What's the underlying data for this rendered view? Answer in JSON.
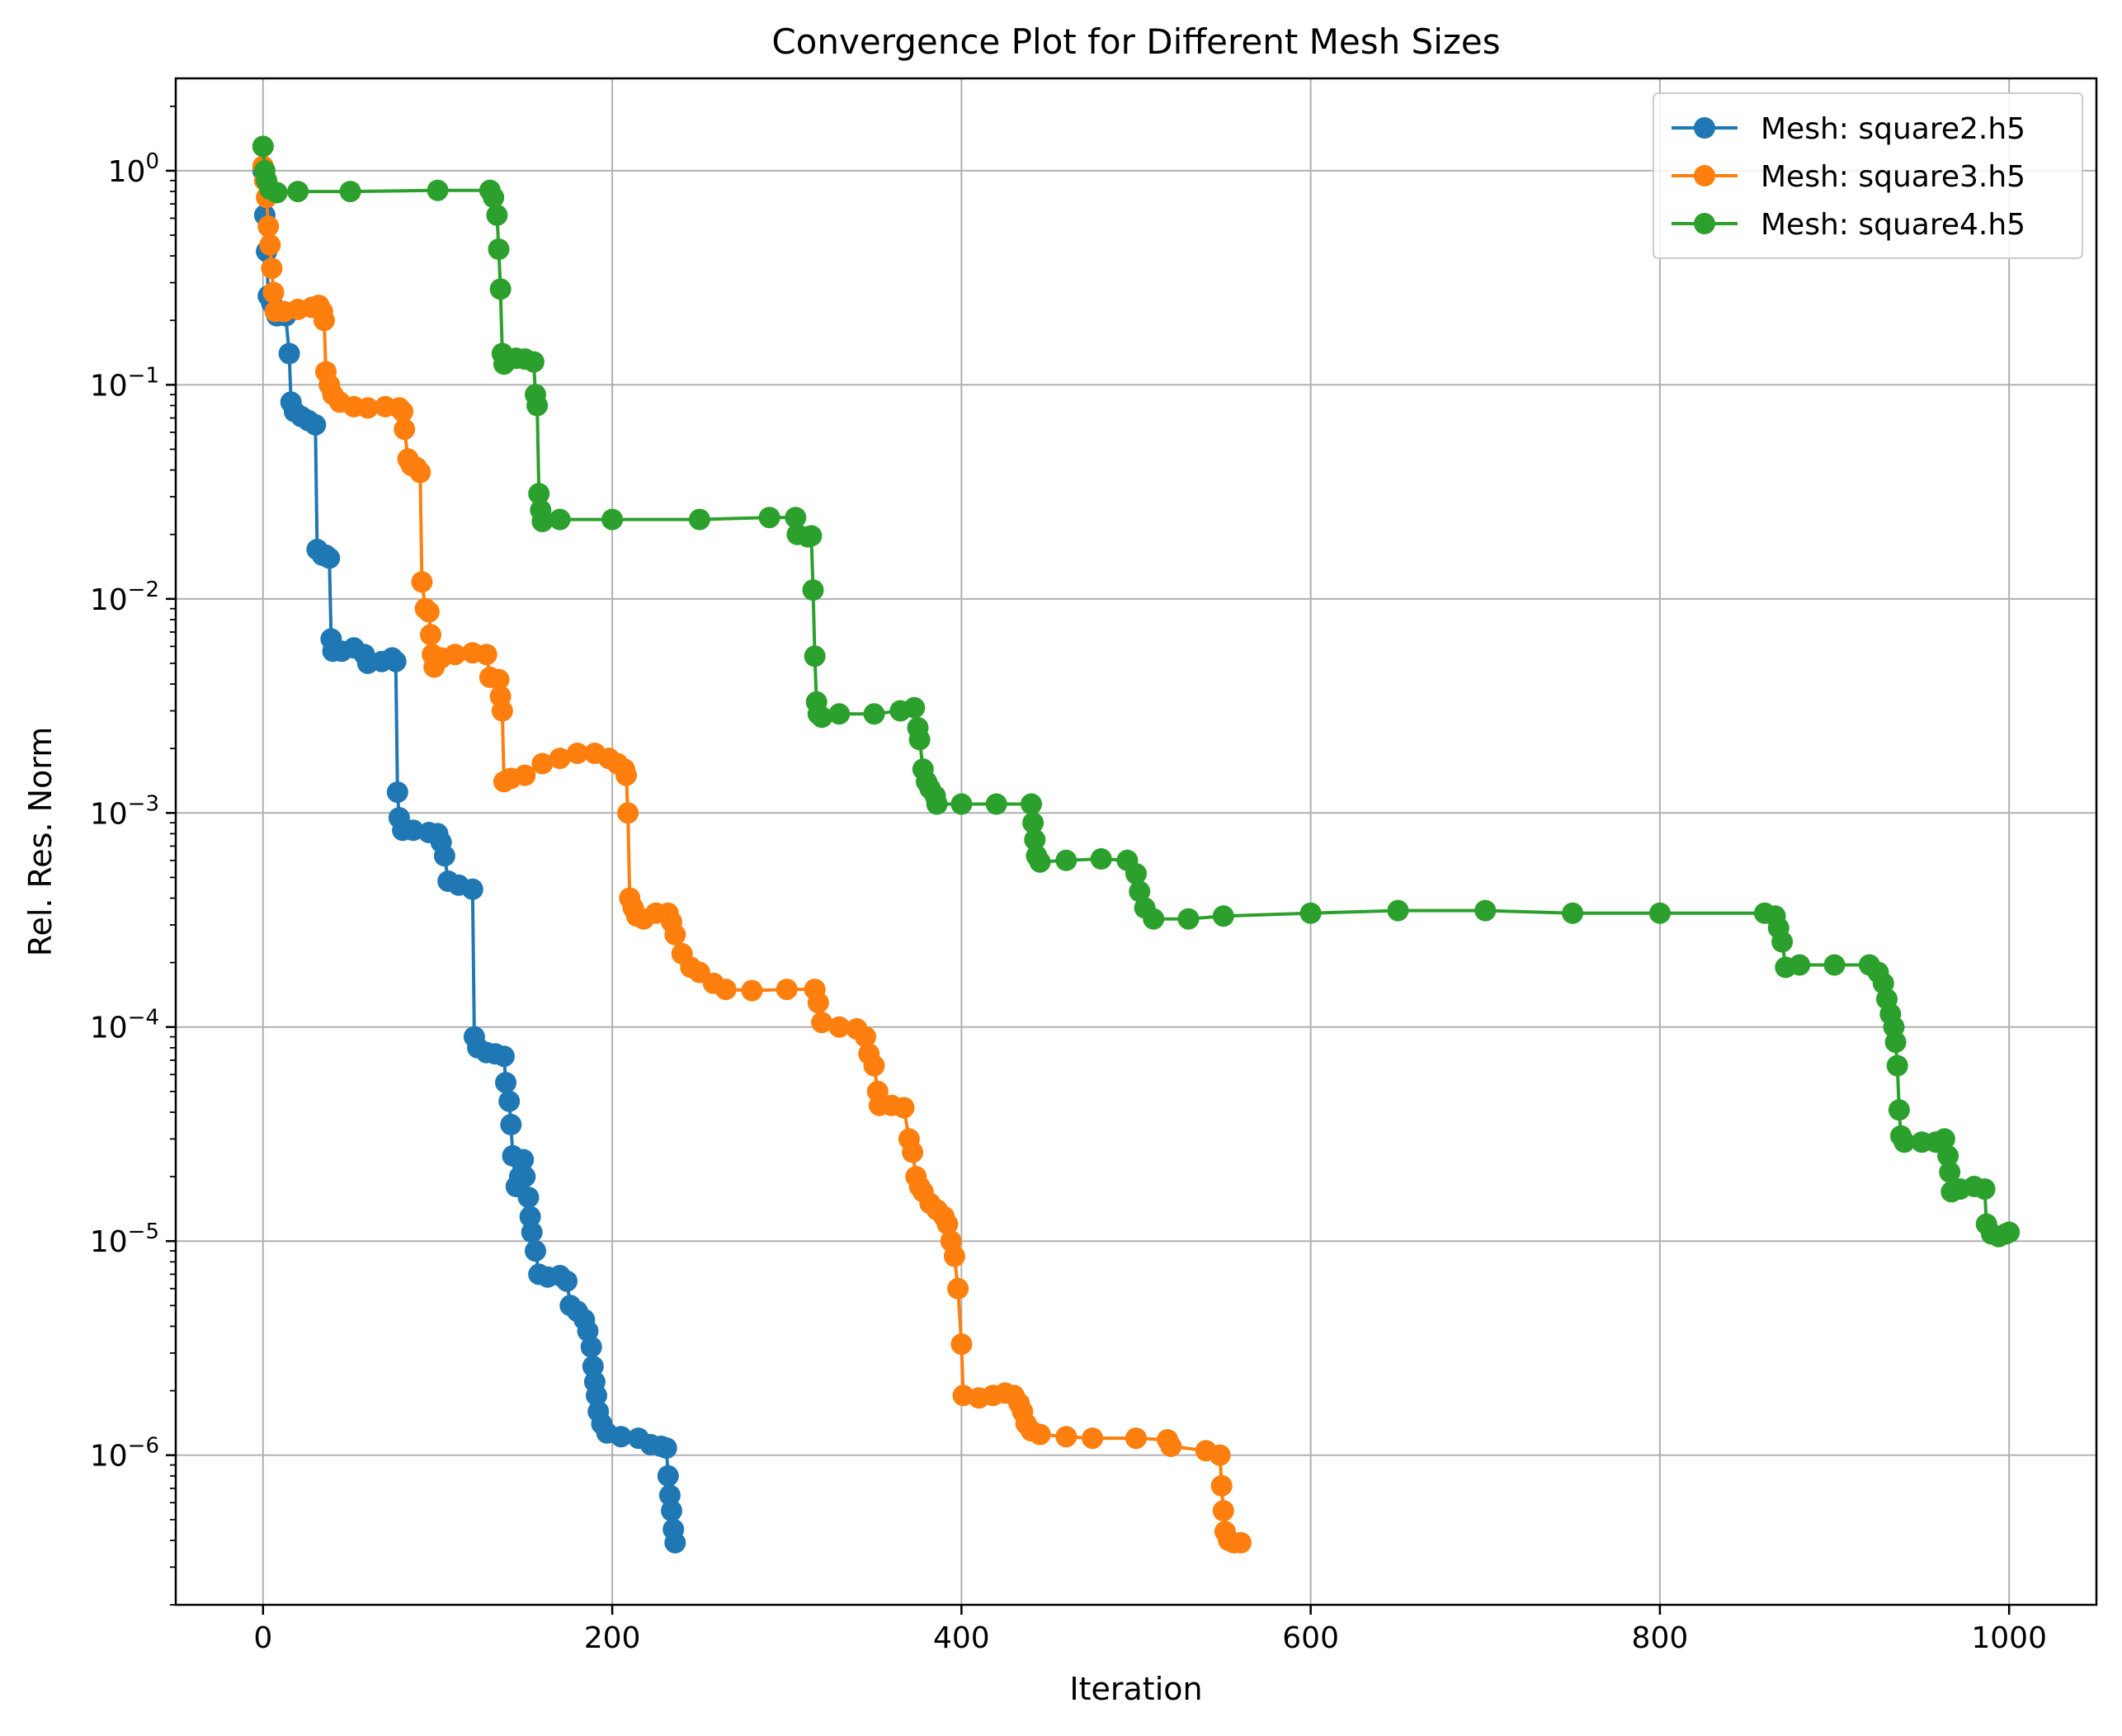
{
  "chart_data": {
    "type": "line",
    "title": "Convergence Plot for Different Mesh Sizes",
    "xlabel": "Iteration",
    "ylabel": "Rel. Res. Norm",
    "xlim": [
      -50,
      1050
    ],
    "ylim": [
      2e-07,
      2.7
    ],
    "yscale": "log",
    "grid": true,
    "legend_position": "top-right",
    "x_ticks": [
      0,
      200,
      400,
      600,
      800,
      1000
    ],
    "x_tick_labels": [
      "0",
      "200",
      "400",
      "600",
      "800",
      "1000"
    ],
    "y_ticks": [
      1,
      0.1,
      0.01,
      0.001,
      0.0001,
      1e-05,
      1e-06
    ],
    "y_tick_labels": [
      {
        "base": "10",
        "exp": "0"
      },
      {
        "base": "10",
        "exp": "−1"
      },
      {
        "base": "10",
        "exp": "−2"
      },
      {
        "base": "10",
        "exp": "−3"
      },
      {
        "base": "10",
        "exp": "−4"
      },
      {
        "base": "10",
        "exp": "−5"
      },
      {
        "base": "10",
        "exp": "−6"
      }
    ],
    "series": [
      {
        "name": "Mesh: square2.h5",
        "color": "#1f77b4",
        "points": [
          [
            0,
            1.0
          ],
          [
            1,
            0.62
          ],
          [
            2,
            0.42
          ],
          [
            3,
            0.26
          ],
          [
            5,
            0.24
          ],
          [
            8,
            0.21
          ],
          [
            13,
            0.21
          ],
          [
            15,
            0.14
          ],
          [
            16,
            0.083
          ],
          [
            18,
            0.075
          ],
          [
            22,
            0.071
          ],
          [
            26,
            0.068
          ],
          [
            30,
            0.065
          ],
          [
            31,
            0.017
          ],
          [
            34,
            0.016
          ],
          [
            36,
            0.016
          ],
          [
            38,
            0.0155
          ],
          [
            39,
            0.0065
          ],
          [
            40,
            0.0057
          ],
          [
            45,
            0.0057
          ],
          [
            52,
            0.0059
          ],
          [
            58,
            0.0055
          ],
          [
            60,
            0.005
          ],
          [
            68,
            0.0051
          ],
          [
            74,
            0.0053
          ],
          [
            76,
            0.0051
          ],
          [
            77,
            0.00125
          ],
          [
            78,
            0.00095
          ],
          [
            80,
            0.00083
          ],
          [
            86,
            0.00083
          ],
          [
            95,
            0.00081
          ],
          [
            100,
            0.0008
          ],
          [
            102,
            0.00073
          ],
          [
            104,
            0.00063
          ],
          [
            106,
            0.00048
          ],
          [
            112,
            0.00046
          ],
          [
            120,
            0.00044
          ],
          [
            121,
            9e-05
          ],
          [
            123,
            8e-05
          ],
          [
            128,
            7.6e-05
          ],
          [
            133,
            7.5e-05
          ],
          [
            138,
            7.3e-05
          ],
          [
            139,
            5.5e-05
          ],
          [
            141,
            4.5e-05
          ],
          [
            142,
            3.5e-05
          ],
          [
            143,
            2.5e-05
          ],
          [
            145,
            1.8e-05
          ],
          [
            147,
            2e-05
          ],
          [
            149,
            2.4e-05
          ],
          [
            150,
            2e-05
          ],
          [
            152,
            1.6e-05
          ],
          [
            153,
            1.3e-05
          ],
          [
            154,
            1.1e-05
          ],
          [
            156,
            9e-06
          ],
          [
            158,
            7e-06
          ],
          [
            163,
            6.8e-06
          ],
          [
            170,
            6.9e-06
          ],
          [
            174,
            6.5e-06
          ],
          [
            176,
            5e-06
          ],
          [
            180,
            4.7e-06
          ],
          [
            184,
            4.3e-06
          ],
          [
            186,
            3.8e-06
          ],
          [
            188,
            3.2e-06
          ],
          [
            189,
            2.6e-06
          ],
          [
            190,
            2.2e-06
          ],
          [
            191,
            1.9e-06
          ],
          [
            192,
            1.6e-06
          ],
          [
            194,
            1.4e-06
          ],
          [
            197,
            1.27e-06
          ],
          [
            205,
            1.22e-06
          ],
          [
            215,
            1.2e-06
          ],
          [
            222,
            1.12e-06
          ],
          [
            228,
            1.1e-06
          ],
          [
            231,
            1.08e-06
          ],
          [
            232,
            8e-07
          ],
          [
            233,
            6.5e-07
          ],
          [
            234,
            5.5e-07
          ],
          [
            235,
            4.5e-07
          ],
          [
            236,
            3.9e-07
          ]
        ]
      },
      {
        "name": "Mesh: square3.h5",
        "color": "#ff7f0e",
        "points": [
          [
            0,
            1.05
          ],
          [
            1,
            0.9
          ],
          [
            2,
            0.75
          ],
          [
            3,
            0.55
          ],
          [
            4,
            0.45
          ],
          [
            5,
            0.35
          ],
          [
            6,
            0.27
          ],
          [
            7,
            0.22
          ],
          [
            12,
            0.22
          ],
          [
            20,
            0.225
          ],
          [
            28,
            0.23
          ],
          [
            32,
            0.235
          ],
          [
            34,
            0.22
          ],
          [
            35,
            0.2
          ],
          [
            36,
            0.115
          ],
          [
            38,
            0.1
          ],
          [
            40,
            0.09
          ],
          [
            44,
            0.083
          ],
          [
            52,
            0.079
          ],
          [
            60,
            0.078
          ],
          [
            70,
            0.079
          ],
          [
            78,
            0.078
          ],
          [
            80,
            0.075
          ],
          [
            81,
            0.062
          ],
          [
            83,
            0.045
          ],
          [
            85,
            0.042
          ],
          [
            88,
            0.041
          ],
          [
            90,
            0.039
          ],
          [
            91,
            0.012
          ],
          [
            93,
            0.009
          ],
          [
            95,
            0.0087
          ],
          [
            96,
            0.0068
          ],
          [
            97,
            0.0055
          ],
          [
            98,
            0.0048
          ],
          [
            102,
            0.0053
          ],
          [
            110,
            0.0055
          ],
          [
            120,
            0.0056
          ],
          [
            128,
            0.0055
          ],
          [
            130,
            0.0043
          ],
          [
            135,
            0.0042
          ],
          [
            136,
            0.0035
          ],
          [
            137,
            0.003
          ],
          [
            138,
            0.0014
          ],
          [
            142,
            0.00145
          ],
          [
            150,
            0.0015
          ],
          [
            160,
            0.0017
          ],
          [
            170,
            0.0018
          ],
          [
            180,
            0.0019
          ],
          [
            190,
            0.0019
          ],
          [
            198,
            0.0018
          ],
          [
            203,
            0.0017
          ],
          [
            207,
            0.0016
          ],
          [
            208,
            0.0015
          ],
          [
            209,
            0.001
          ],
          [
            210,
            0.0004
          ],
          [
            212,
            0.00036
          ],
          [
            214,
            0.00033
          ],
          [
            218,
            0.00032
          ],
          [
            225,
            0.00034
          ],
          [
            232,
            0.00034
          ],
          [
            234,
            0.00031
          ],
          [
            236,
            0.00027
          ],
          [
            240,
            0.00022
          ],
          [
            245,
            0.00019
          ],
          [
            250,
            0.00018
          ],
          [
            258,
            0.00016
          ],
          [
            265,
            0.00015
          ],
          [
            280,
            0.000148
          ],
          [
            300,
            0.00015
          ],
          [
            316,
            0.00015
          ],
          [
            318,
            0.00013
          ],
          [
            320,
            0.000105
          ],
          [
            330,
            0.0001
          ],
          [
            340,
            9.8e-05
          ],
          [
            345,
            9e-05
          ],
          [
            347,
            7.5e-05
          ],
          [
            350,
            6.6e-05
          ],
          [
            352,
            5e-05
          ],
          [
            353,
            4.3e-05
          ],
          [
            360,
            4.3e-05
          ],
          [
            367,
            4.2e-05
          ],
          [
            370,
            3e-05
          ],
          [
            372,
            2.6e-05
          ],
          [
            374,
            2e-05
          ],
          [
            376,
            1.8e-05
          ],
          [
            378,
            1.7e-05
          ],
          [
            382,
            1.5e-05
          ],
          [
            386,
            1.4e-05
          ],
          [
            390,
            1.3e-05
          ],
          [
            392,
            1.2e-05
          ],
          [
            394,
            1e-05
          ],
          [
            396,
            8.5e-06
          ],
          [
            398,
            6e-06
          ],
          [
            400,
            3.3e-06
          ],
          [
            401,
            1.9e-06
          ],
          [
            410,
            1.85e-06
          ],
          [
            418,
            1.9e-06
          ],
          [
            425,
            1.95e-06
          ],
          [
            430,
            1.9e-06
          ],
          [
            433,
            1.75e-06
          ],
          [
            435,
            1.6e-06
          ],
          [
            437,
            1.4e-06
          ],
          [
            440,
            1.3e-06
          ],
          [
            445,
            1.25e-06
          ],
          [
            460,
            1.22e-06
          ],
          [
            475,
            1.2e-06
          ],
          [
            500,
            1.2e-06
          ],
          [
            518,
            1.18e-06
          ],
          [
            520,
            1.1e-06
          ],
          [
            540,
            1.05e-06
          ],
          [
            548,
            1e-06
          ],
          [
            549,
            7.2e-07
          ],
          [
            550,
            5.5e-07
          ],
          [
            551,
            4.4e-07
          ],
          [
            553,
            4e-07
          ],
          [
            556,
            3.9e-07
          ],
          [
            560,
            3.9e-07
          ]
        ]
      },
      {
        "name": "Mesh: square4.h5",
        "color": "#2ca02c",
        "points": [
          [
            0,
            1.3
          ],
          [
            1,
            1.0
          ],
          [
            2,
            0.9
          ],
          [
            4,
            0.82
          ],
          [
            8,
            0.79
          ],
          [
            20,
            0.8
          ],
          [
            50,
            0.8
          ],
          [
            100,
            0.81
          ],
          [
            130,
            0.81
          ],
          [
            132,
            0.75
          ],
          [
            134,
            0.62
          ],
          [
            135,
            0.43
          ],
          [
            136,
            0.28
          ],
          [
            137,
            0.14
          ],
          [
            138,
            0.125
          ],
          [
            140,
            0.13
          ],
          [
            145,
            0.133
          ],
          [
            150,
            0.132
          ],
          [
            155,
            0.128
          ],
          [
            156,
            0.09
          ],
          [
            157,
            0.08
          ],
          [
            158,
            0.031
          ],
          [
            159,
            0.026
          ],
          [
            160,
            0.023
          ],
          [
            170,
            0.0235
          ],
          [
            200,
            0.0235
          ],
          [
            250,
            0.0235
          ],
          [
            290,
            0.024
          ],
          [
            305,
            0.024
          ],
          [
            306,
            0.02
          ],
          [
            312,
            0.0195
          ],
          [
            314,
            0.0197
          ],
          [
            315,
            0.011
          ],
          [
            316,
            0.0054
          ],
          [
            317,
            0.0033
          ],
          [
            318,
            0.0029
          ],
          [
            320,
            0.0028
          ],
          [
            330,
            0.0029
          ],
          [
            350,
            0.0029
          ],
          [
            365,
            0.003
          ],
          [
            373,
            0.0031
          ],
          [
            375,
            0.0025
          ],
          [
            376,
            0.0022
          ],
          [
            378,
            0.0016
          ],
          [
            380,
            0.0014
          ],
          [
            382,
            0.0013
          ],
          [
            385,
            0.0012
          ],
          [
            386,
            0.0011
          ],
          [
            400,
            0.0011
          ],
          [
            420,
            0.0011
          ],
          [
            440,
            0.0011
          ],
          [
            441,
            0.0009
          ],
          [
            442,
            0.00075
          ],
          [
            443,
            0.00063
          ],
          [
            445,
            0.00059
          ],
          [
            460,
            0.0006
          ],
          [
            480,
            0.00061
          ],
          [
            495,
            0.0006
          ],
          [
            500,
            0.00052
          ],
          [
            502,
            0.00043
          ],
          [
            505,
            0.00036
          ],
          [
            510,
            0.00032
          ],
          [
            530,
            0.00032
          ],
          [
            550,
            0.00033
          ],
          [
            600,
            0.00034
          ],
          [
            650,
            0.00035
          ],
          [
            700,
            0.00035
          ],
          [
            750,
            0.00034
          ],
          [
            800,
            0.00034
          ],
          [
            860,
            0.00034
          ],
          [
            866,
            0.00033
          ],
          [
            868,
            0.00029
          ],
          [
            870,
            0.00025
          ],
          [
            872,
            0.00019
          ],
          [
            880,
            0.000195
          ],
          [
            900,
            0.000195
          ],
          [
            920,
            0.000195
          ],
          [
            925,
            0.00018
          ],
          [
            928,
            0.00016
          ],
          [
            930,
            0.000135
          ],
          [
            932,
            0.000115
          ],
          [
            934,
            0.0001
          ],
          [
            935,
            8.5e-05
          ],
          [
            936,
            6.6e-05
          ],
          [
            937,
            4.1e-05
          ],
          [
            938,
            3.1e-05
          ],
          [
            940,
            2.9e-05
          ],
          [
            950,
            2.9e-05
          ],
          [
            958,
            2.9e-05
          ],
          [
            963,
            3e-05
          ],
          [
            965,
            2.5e-05
          ],
          [
            966,
            2.1e-05
          ],
          [
            967,
            1.7e-05
          ],
          [
            972,
            1.75e-05
          ],
          [
            980,
            1.8e-05
          ],
          [
            986,
            1.75e-05
          ],
          [
            987,
            1.2e-05
          ],
          [
            990,
            1.08e-05
          ],
          [
            994,
            1.05e-05
          ],
          [
            998,
            1.08e-05
          ],
          [
            1000,
            1.1e-05
          ]
        ]
      }
    ]
  }
}
